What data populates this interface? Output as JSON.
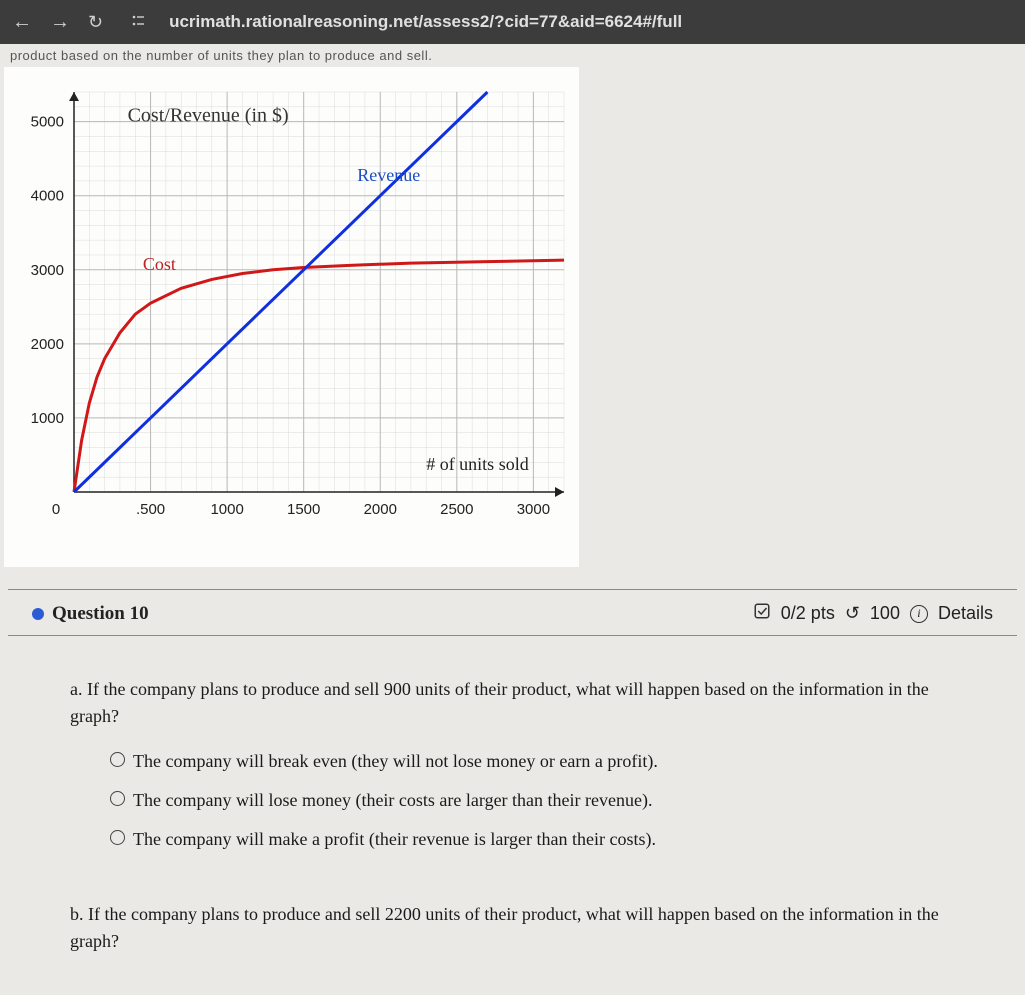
{
  "browser": {
    "url": "ucrimath.rationalreasoning.net/assess2/?cid=77&aid=6624#/full"
  },
  "truncated_header": "product based on the number of units they plan to produce and sell.",
  "chart": {
    "type": "line",
    "title": "Cost/Revenue (in $)",
    "title_fontsize": 20,
    "title_color": "#333333",
    "xlabel": "# of units sold",
    "xlabel_fontsize": 18,
    "background_color": "#fdfdfc",
    "grid_major_color": "#b8b8b8",
    "grid_minor_color": "#dcdcdc",
    "xlim": [
      0,
      3200
    ],
    "ylim": [
      0,
      5400
    ],
    "xticks": [
      0,
      500,
      1000,
      1500,
      2000,
      2500,
      3000
    ],
    "yticks": [
      1000,
      2000,
      3000,
      4000,
      5000
    ],
    "y_axis_label_origin": "0",
    "tick_fontsize": 15,
    "tick_color": "#222222",
    "revenue": {
      "label": "Revenue",
      "label_color": "#1a4fc4",
      "line_color": "#1030e0",
      "line_width": 3,
      "points": [
        [
          0,
          0
        ],
        [
          500,
          1000
        ],
        [
          1000,
          2000
        ],
        [
          1500,
          3000
        ],
        [
          2000,
          4000
        ],
        [
          2500,
          5000
        ],
        [
          2700,
          5400
        ]
      ]
    },
    "cost": {
      "label": "Cost",
      "label_color": "#c02020",
      "line_color": "#d01818",
      "line_width": 3,
      "points": [
        [
          0,
          0
        ],
        [
          50,
          700
        ],
        [
          100,
          1200
        ],
        [
          150,
          1550
        ],
        [
          200,
          1800
        ],
        [
          300,
          2150
        ],
        [
          400,
          2400
        ],
        [
          500,
          2550
        ],
        [
          700,
          2750
        ],
        [
          900,
          2870
        ],
        [
          1100,
          2950
        ],
        [
          1300,
          3000
        ],
        [
          1500,
          3030
        ],
        [
          1800,
          3060
        ],
        [
          2200,
          3090
        ],
        [
          2700,
          3110
        ],
        [
          3200,
          3130
        ]
      ]
    }
  },
  "question": {
    "number_label": "Question 10",
    "points": "0/2 pts",
    "attempts": "100",
    "details_label": "Details",
    "part_a": {
      "label": "a.",
      "text": "If the company plans to produce and sell 900 units of their product, what will happen based on the information in the graph?",
      "options": [
        "The company will break even (they will not lose money or earn a profit).",
        "The company will lose money (their costs are larger than their revenue).",
        "The company will make a profit (their revenue is larger than their costs)."
      ]
    },
    "part_b": {
      "label": "b.",
      "text": "If the company plans to produce and sell 2200 units of their product, what will happen based on the information in the graph?"
    }
  }
}
